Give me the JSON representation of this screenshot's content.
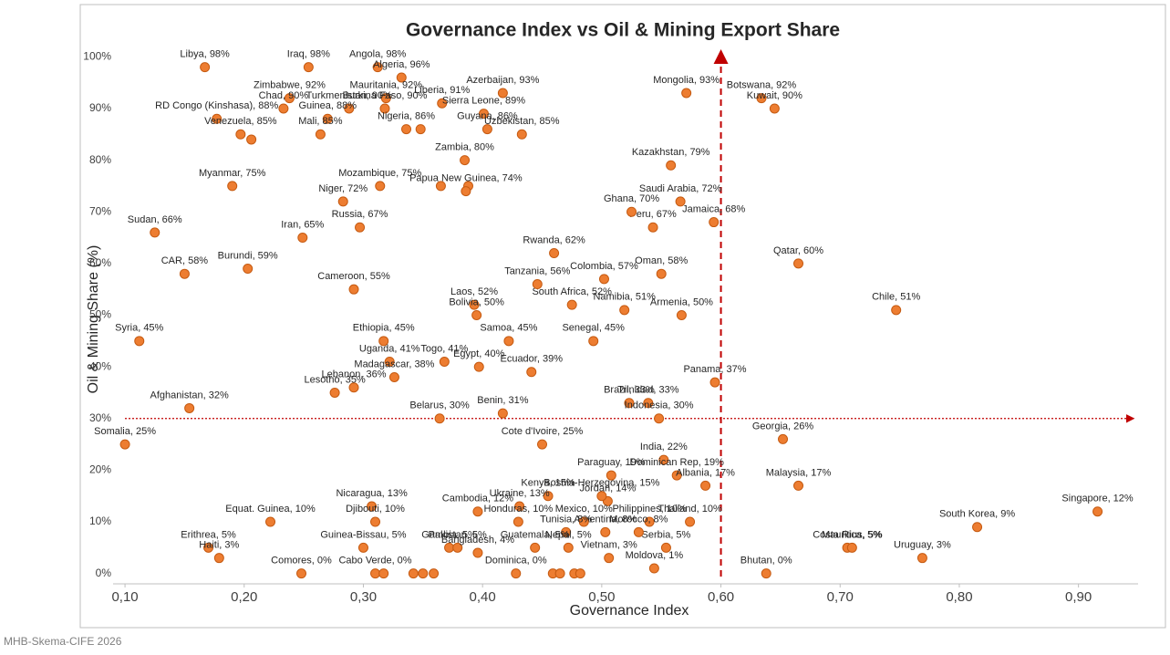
{
  "chart_data": {
    "type": "scatter",
    "title": "Governance Index vs Oil & Mining Export Share",
    "x_label": "Governance Index",
    "y_label": "Oil & Mining Share (%)",
    "footer": "MHB-Skema-CIFE 2026",
    "color": "#ED7D31",
    "xlim": [
      0.09,
      0.95
    ],
    "ylim": [
      -2,
      102
    ],
    "grid": false,
    "xticks": [
      {
        "value": 0.1,
        "label": "0,10"
      },
      {
        "value": 0.2,
        "label": "0,20"
      },
      {
        "value": 0.3,
        "label": "0,30"
      },
      {
        "value": 0.4,
        "label": "0,40"
      },
      {
        "value": 0.5,
        "label": "0,50"
      },
      {
        "value": 0.6,
        "label": "0,60"
      },
      {
        "value": 0.7,
        "label": "0,70"
      },
      {
        "value": 0.8,
        "label": "0,80"
      },
      {
        "value": 0.9,
        "label": "0,90"
      }
    ],
    "yticks": [
      {
        "value": 0,
        "label": "0%"
      },
      {
        "value": 10,
        "label": "10%"
      },
      {
        "value": 20,
        "label": "20%"
      },
      {
        "value": 30,
        "label": "30%"
      },
      {
        "value": 40,
        "label": "40%"
      },
      {
        "value": 50,
        "label": "50%"
      },
      {
        "value": 60,
        "label": "60%"
      },
      {
        "value": 70,
        "label": "70%"
      },
      {
        "value": 80,
        "label": "80%"
      },
      {
        "value": 90,
        "label": "90%"
      },
      {
        "value": 100,
        "label": "100%"
      }
    ],
    "ref_lines": [
      {
        "axis": "x",
        "value": 0.6,
        "color": "#C00000"
      },
      {
        "axis": "y",
        "value": 30,
        "color": "#C00000"
      }
    ],
    "x": [
      0.167,
      0.254,
      0.312,
      0.332,
      0.319,
      0.238,
      0.233,
      0.288,
      0.318,
      0.27,
      0.366,
      0.417,
      0.401,
      0.177,
      0.197,
      0.206,
      0.264,
      0.336,
      0.348,
      0.404,
      0.433,
      0.385,
      0.314,
      0.365,
      0.388,
      0.386,
      0.19,
      0.283,
      0.297,
      0.249,
      0.125,
      0.203,
      0.15,
      0.292,
      0.112,
      0.317,
      0.322,
      0.368,
      0.326,
      0.292,
      0.276,
      0.154,
      0.1,
      0.364,
      0.417,
      0.397,
      0.441,
      0.422,
      0.493,
      0.393,
      0.395,
      0.475,
      0.519,
      0.446,
      0.502,
      0.46,
      0.55,
      0.567,
      0.543,
      0.525,
      0.566,
      0.594,
      0.558,
      0.571,
      0.634,
      0.645,
      0.665,
      0.747,
      0.595,
      0.523,
      0.539,
      0.548,
      0.652,
      0.552,
      0.45,
      0.508,
      0.563,
      0.587,
      0.665,
      0.916,
      0.815,
      0.706,
      0.71,
      0.769,
      0.638,
      0.544,
      0.554,
      0.574,
      0.54,
      0.531,
      0.503,
      0.505,
      0.5,
      0.455,
      0.431,
      0.396,
      0.43,
      0.485,
      0.47,
      0.506,
      0.444,
      0.472,
      0.307,
      0.31,
      0.222,
      0.17,
      0.179,
      0.3,
      0.372,
      0.379,
      0.396,
      0.248,
      0.31,
      0.317,
      0.342,
      0.35,
      0.359,
      0.428,
      0.459,
      0.465,
      0.477,
      0.482
    ],
    "values": [
      98,
      98,
      98,
      96,
      92,
      92,
      90,
      90,
      90,
      88,
      91,
      93,
      89,
      88,
      85,
      84,
      85,
      86,
      86,
      86,
      85,
      80,
      75,
      75,
      75,
      74,
      75,
      72,
      67,
      65,
      66,
      59,
      58,
      55,
      45,
      45,
      41,
      41,
      38,
      36,
      35,
      32,
      25,
      30,
      31,
      40,
      39,
      45,
      45,
      52,
      50,
      52,
      51,
      56,
      57,
      62,
      58,
      50,
      67,
      70,
      72,
      68,
      79,
      93,
      92,
      90,
      60,
      51,
      37,
      33,
      33,
      30,
      26,
      22,
      25,
      19,
      19,
      17,
      17,
      12,
      9,
      5,
      5,
      3,
      0,
      1,
      5,
      10,
      10,
      8,
      8,
      14,
      15,
      15,
      13,
      12,
      10,
      10,
      8,
      3,
      5,
      5,
      13,
      10,
      10,
      5,
      3,
      5,
      5,
      5,
      4,
      0,
      0,
      0,
      0,
      0,
      0,
      0,
      0,
      0,
      0,
      0
    ],
    "labels": [
      "Libya, 98%",
      "Iraq, 98%",
      "Angola, 98%",
      "Algeria, 96%",
      "Mauritania, 92%",
      "Zimbabwe, 92%",
      "Chad, 90%",
      "Turkmenistan, 90%",
      "Burkina Faso, 90%",
      "Guinea, 88%",
      "Liberia, 91%",
      "Azerbaijan, 93%",
      "Sierra Leone, 89%",
      "RD Congo (Kinshasa), 88%",
      "Venezuela, 85%",
      null,
      "Mali, 85%",
      "Nigeria, 86%",
      null,
      "Guyana, 86%",
      "Uzbekistan, 85%",
      "Zambia, 80%",
      "Mozambique, 75%",
      null,
      null,
      "Papua New Guinea, 74%",
      "Myanmar, 75%",
      "Niger, 72%",
      "Russia, 67%",
      "Iran, 65%",
      "Sudan, 66%",
      "Burundi, 59%",
      "CAR, 58%",
      "Cameroon, 55%",
      "Syria, 45%",
      "Ethiopia, 45%",
      "Uganda, 41%",
      "Togo, 41%",
      "Madagascar, 38%",
      "Lebanon, 36%",
      "Lesotho, 35%",
      "Afghanistan, 32%",
      "Somalia, 25%",
      "Belarus, 30%",
      "Benin, 31%",
      "Egypt, 40%",
      "Ecuador, 39%",
      "Samoa, 45%",
      "Senegal, 45%",
      "Laos, 52%",
      "Bolivia, 50%",
      "South Africa, 52%",
      "Namibia, 51%",
      "Tanzania, 56%",
      "Colombia, 57%",
      "Rwanda, 62%",
      "Oman, 58%",
      "Armenia, 50%",
      "Peru, 67%",
      "Ghana, 70%",
      "Saudi Arabia, 72%",
      "Jamaica, 68%",
      "Kazakhstan, 79%",
      "Mongolia, 93%",
      "Botswana, 92%",
      "Kuwait, 90%",
      "Qatar, 60%",
      "Chile, 51%",
      "Panama, 37%",
      "Brazil, 33%",
      "Trinidad, 33%",
      "Indonesia, 30%",
      "Georgia, 26%",
      "India, 22%",
      "Cote d'Ivoire, 25%",
      "Paraguay, 19%",
      "Dominican Rep, 19%",
      "Albania, 17%",
      "Malaysia, 17%",
      "Singapore, 12%",
      "South Korea, 9%",
      "Costa Rica, 5%",
      "Mauritius, 5%",
      "Uruguay, 3%",
      "Bhutan, 0%",
      "Moldova, 1%",
      "Serbia, 5%",
      "Thailand, 10%",
      "Philippines, 10%",
      "Morocco, 8%",
      "Argentina, 8%",
      "Jordan, 14%",
      "Bosnia-Herzegovina, 15%",
      "Kenya, 15%",
      "Ukraine, 13%",
      "Cambodia, 12%",
      "Honduras, 10%",
      "Mexico, 10%",
      "Tunisia, 8%",
      "Vietnam, 3%",
      "Guatemala, 5%",
      "Nepal, 5%",
      "Nicaragua, 13%",
      "Djibouti, 10%",
      "Equat. Guinea, 10%",
      "Erithrea, 5%",
      "Haiti, 3%",
      "Guinea-Bissau, 5%",
      "Gambia, 5%",
      "Pakistan, 5%",
      "Bangladesh, 4%",
      "Comores, 0%",
      "Cabo Verde, 0%",
      null,
      null,
      null,
      null,
      "Dominica, 0%",
      null,
      null,
      null,
      null
    ]
  }
}
